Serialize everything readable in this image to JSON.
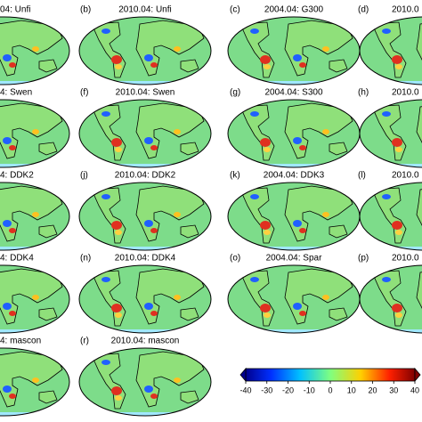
{
  "panels": [
    {
      "title": "04: Unfi"
    },
    {
      "label": "(b)",
      "title": "2010.04: Unfi"
    },
    {
      "label": "(c)",
      "title": "2004.04: G300"
    },
    {
      "label": "(d)",
      "title": "2010.0"
    },
    {
      "title": "4: Swen"
    },
    {
      "label": "(f)",
      "title": "2010.04: Swen"
    },
    {
      "label": "(g)",
      "title": "2004.04: S300"
    },
    {
      "label": "(h)",
      "title": "2010.0"
    },
    {
      "title": "4: DDK2"
    },
    {
      "label": "(j)",
      "title": "2010.04: DDK2"
    },
    {
      "label": "(k)",
      "title": "2004.04: DDK3"
    },
    {
      "label": "(l)",
      "title": "2010.0"
    },
    {
      "title": "4: DDK4"
    },
    {
      "label": "(n)",
      "title": "2010.04: DDK4"
    },
    {
      "label": "(o)",
      "title": "2004.04: Spar"
    },
    {
      "label": "(p)",
      "title": "2010.0"
    },
    {
      "title": "4: mascon"
    },
    {
      "label": "(r)",
      "title": "2010.04: mascon"
    }
  ],
  "colorbar": {
    "lim": [
      -40,
      40
    ],
    "ticks": [
      -40,
      -30,
      -20,
      -10,
      0,
      10,
      20,
      30,
      40
    ]
  }
}
